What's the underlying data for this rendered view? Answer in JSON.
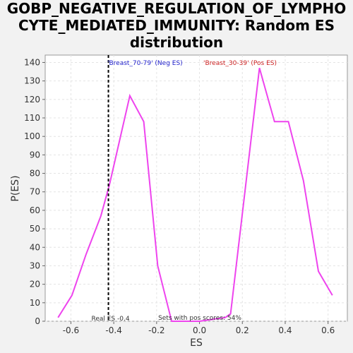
{
  "chart_data": {
    "type": "line",
    "title_line1": "GOBP_NEGATIVE_REGULATION_OF_LYMPHO",
    "title_line2": "CYTE_MEDIATED_IMMUNITY: Random ES",
    "title_line3": "distribution",
    "xlabel": "ES",
    "ylabel": "P(ES)",
    "xlim": [
      -0.72,
      0.69
    ],
    "ylim": [
      0,
      144
    ],
    "xticks": [
      -0.6,
      -0.4,
      -0.2,
      0.0,
      0.2,
      0.4,
      0.6
    ],
    "xtick_labels": [
      "-0.6",
      "-0.4",
      "-0.2",
      "0.0",
      "0.2",
      "0.4",
      "0.6"
    ],
    "yticks": [
      0,
      10,
      20,
      30,
      40,
      50,
      60,
      70,
      80,
      90,
      100,
      110,
      120,
      130,
      140
    ],
    "grid": true,
    "series": [
      {
        "color": "#ee44ee",
        "x": [
          -0.66,
          -0.595,
          -0.53,
          -0.46,
          -0.42,
          -0.325,
          -0.26,
          -0.195,
          -0.13,
          0.0,
          0.12,
          0.145,
          0.28,
          0.35,
          0.415,
          0.485,
          0.555,
          0.62
        ],
        "y": [
          2,
          14,
          36,
          57,
          74,
          122,
          108,
          30,
          0,
          0,
          2,
          4,
          137,
          108,
          108,
          76,
          27,
          14
        ]
      }
    ],
    "real_es": -0.425,
    "real_es_label": "Real ES -0.4",
    "neg_label": "'Breast_70-79' (Neg ES)",
    "neg_color": "#2222cc",
    "pos_label": "'Breast_30-39' (Pos ES)",
    "pos_color": "#cc2222",
    "pos_scores_label": "Sets with pos scores: 54%"
  }
}
